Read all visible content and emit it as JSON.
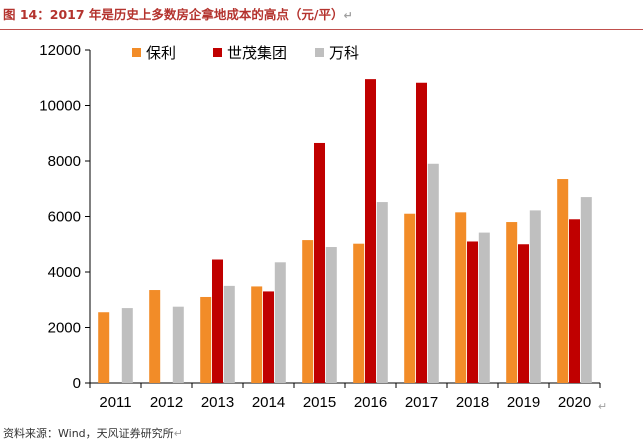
{
  "header": {
    "title": "图 14：2017 年是历史上多数房企拿地成本的高点（元/平）"
  },
  "footer": {
    "source": "资料来源：Wind，天风证券研究所"
  },
  "chart_data": {
    "type": "bar",
    "title": "图 14：2017 年是历史上多数房企拿地成本的高点（元/平）",
    "xlabel": "",
    "ylabel": "",
    "ylim": [
      0,
      12000
    ],
    "yticks": [
      0,
      2000,
      4000,
      6000,
      8000,
      10000,
      12000
    ],
    "grid": false,
    "legend_position": "top-left",
    "categories": [
      "2011",
      "2012",
      "2013",
      "2014",
      "2015",
      "2016",
      "2017",
      "2018",
      "2019",
      "2020"
    ],
    "series": [
      {
        "name": "保利",
        "color": "#f28c28",
        "values": [
          2550,
          3350,
          3100,
          3480,
          5150,
          5020,
          6100,
          6150,
          5800,
          7350
        ]
      },
      {
        "name": "世茂集团",
        "color": "#c00000",
        "values": [
          null,
          null,
          4450,
          3300,
          8650,
          10950,
          10820,
          5100,
          5000,
          5900
        ]
      },
      {
        "name": "万科",
        "color": "#bfbfbf",
        "values": [
          2700,
          2750,
          3500,
          4350,
          4900,
          6520,
          7900,
          5420,
          6220,
          6700
        ]
      }
    ]
  }
}
